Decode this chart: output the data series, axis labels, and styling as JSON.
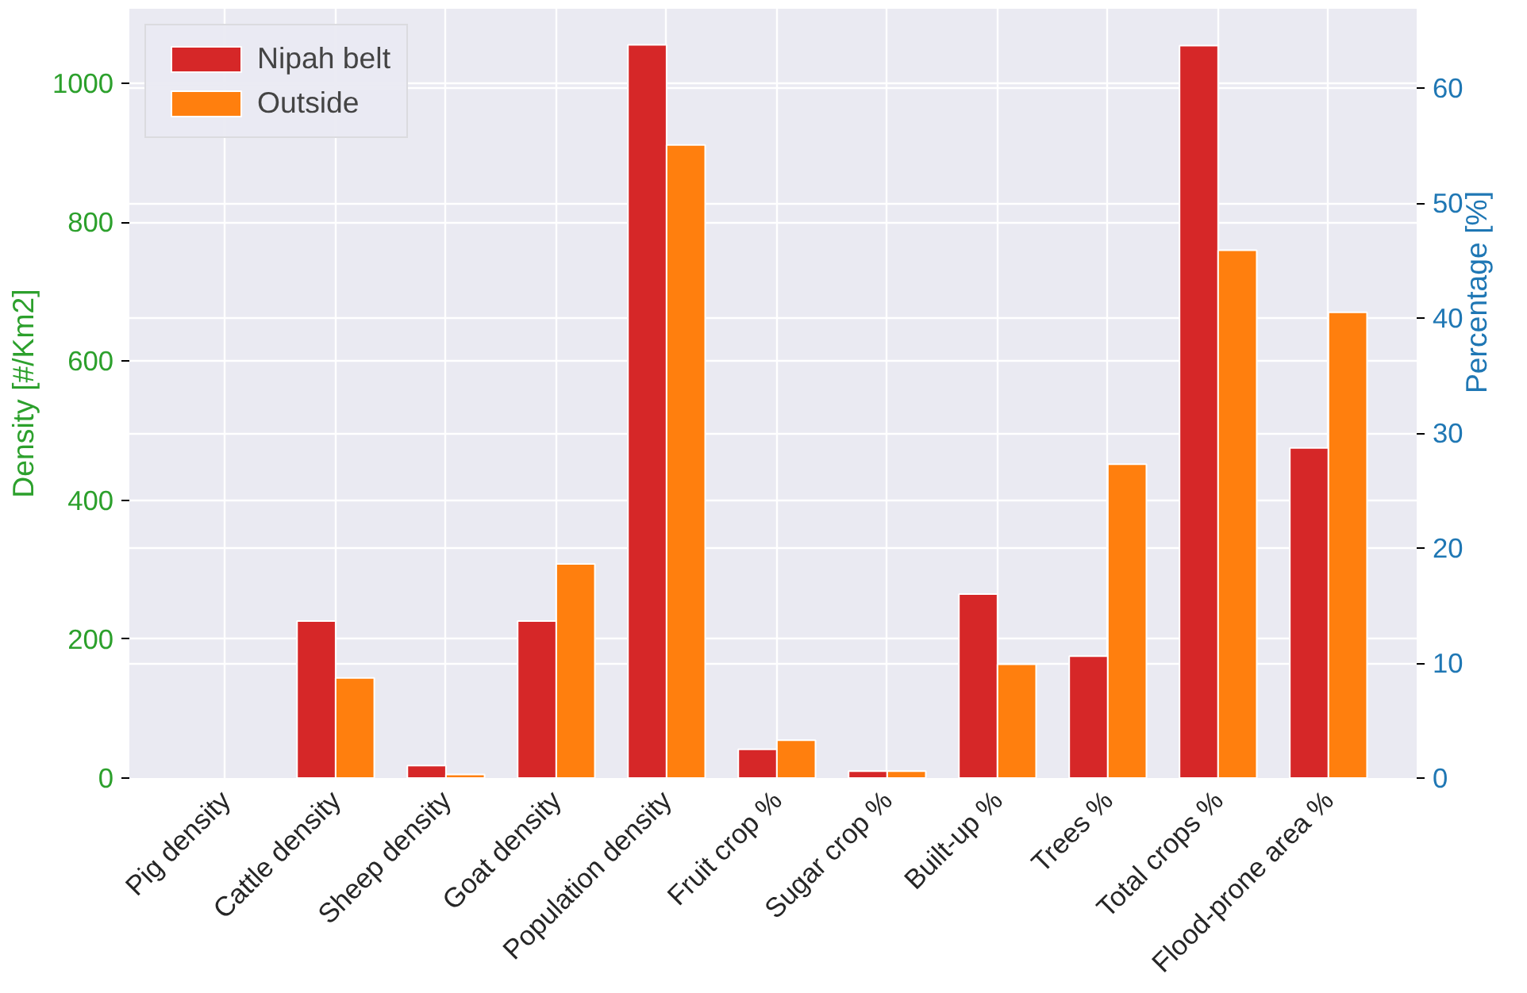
{
  "chart_data": {
    "type": "bar",
    "categories": [
      "Pig density",
      "Cattle density",
      "Sheep density",
      "Goat density",
      "Population density",
      "Fruit crop %",
      "Sugar crop %",
      "Built-up %",
      "Trees %",
      "Total crops %",
      "Flood-prone area %"
    ],
    "ylabel": "Density [#/Km2]",
    "y2label": "Percentage [%]",
    "ylim": [
      0,
      1107
    ],
    "yticks": [
      0,
      200,
      400,
      600,
      800,
      1000
    ],
    "y2lim": [
      0,
      66.9
    ],
    "y2ticks": [
      0,
      10,
      20,
      30,
      40,
      50,
      60
    ],
    "grid": true,
    "legend": "top left",
    "series": [
      {
        "name": "Nipah belt",
        "color": "#d62728",
        "values": [
          null,
          226,
          18,
          226,
          1055,
          null,
          null,
          null,
          null,
          null,
          null
        ]
      },
      {
        "name": "Outside",
        "color": "#ff7f0e",
        "values": [
          null,
          144,
          5,
          308,
          911,
          null,
          null,
          null,
          null,
          null,
          null
        ]
      },
      {
        "color": "#d62728",
        "axis": "y2",
        "values": [
          null,
          null,
          null,
          null,
          null,
          2.5,
          0.6,
          16.0,
          10.6,
          63.7,
          28.7
        ]
      },
      {
        "color": "#ff7f0e",
        "axis": "y2",
        "values": [
          null,
          null,
          null,
          null,
          null,
          3.3,
          0.6,
          9.9,
          27.3,
          45.9,
          40.5
        ]
      }
    ]
  }
}
